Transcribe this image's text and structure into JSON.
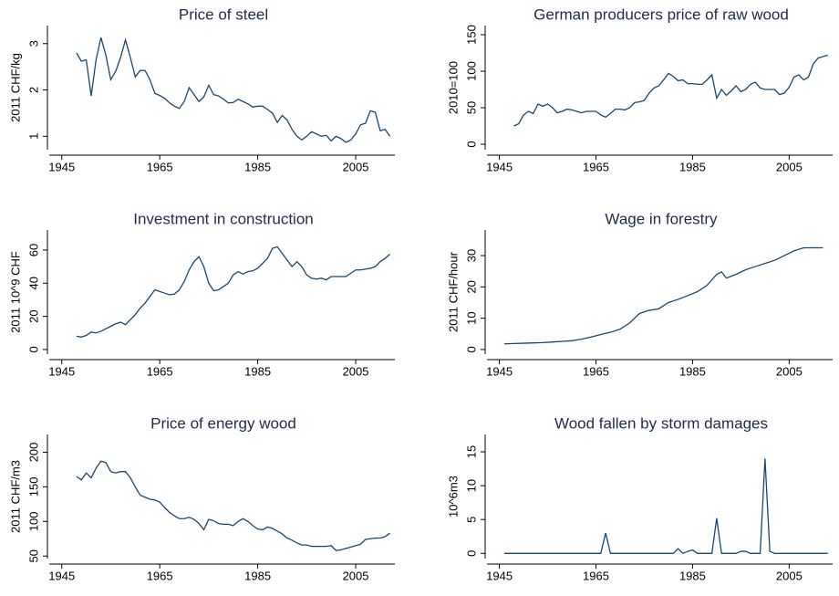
{
  "chart_data": [
    {
      "type": "line",
      "title": "Price of steel",
      "y_label": "2011 CHF/kg",
      "color": "#1a476f",
      "x": [
        1948,
        1949,
        1950,
        1951,
        1952,
        1953,
        1954,
        1955,
        1956,
        1957,
        1958,
        1959,
        1960,
        1961,
        1962,
        1963,
        1964,
        1965,
        1966,
        1967,
        1968,
        1969,
        1970,
        1971,
        1972,
        1973,
        1974,
        1975,
        1976,
        1977,
        1978,
        1979,
        1980,
        1981,
        1982,
        1983,
        1984,
        1985,
        1986,
        1987,
        1988,
        1989,
        1990,
        1991,
        1992,
        1993,
        1994,
        1995,
        1996,
        1997,
        1998,
        1999,
        2000,
        2001,
        2002,
        2003,
        2004,
        2005,
        2006,
        2007,
        2008,
        2009,
        2010,
        2011,
        2012
      ],
      "values": [
        2.8,
        2.62,
        2.65,
        1.87,
        2.65,
        3.13,
        2.75,
        2.22,
        2.4,
        2.7,
        3.08,
        2.7,
        2.28,
        2.42,
        2.42,
        2.22,
        1.93,
        1.88,
        1.82,
        1.72,
        1.65,
        1.6,
        1.75,
        2.05,
        1.9,
        1.75,
        1.85,
        2.1,
        1.9,
        1.87,
        1.8,
        1.72,
        1.73,
        1.8,
        1.75,
        1.7,
        1.63,
        1.65,
        1.65,
        1.58,
        1.5,
        1.3,
        1.45,
        1.35,
        1.15,
        1.0,
        0.92,
        1.0,
        1.1,
        1.05,
        1.0,
        1.02,
        0.9,
        1.0,
        0.95,
        0.87,
        0.92,
        1.05,
        1.25,
        1.28,
        1.55,
        1.52,
        1.12,
        1.15,
        1.0
      ],
      "xlim": [
        1943,
        2013
      ],
      "xticks": [
        1945,
        1965,
        1985,
        2005
      ],
      "ylim": [
        0.75,
        3.35
      ],
      "yticks": [
        1,
        2,
        3
      ]
    },
    {
      "type": "line",
      "title": "German producers price of raw wood",
      "y_label": "2010=100",
      "color": "#1a476f",
      "x": [
        1948,
        1949,
        1950,
        1951,
        1952,
        1953,
        1954,
        1955,
        1956,
        1957,
        1958,
        1959,
        1960,
        1961,
        1962,
        1963,
        1964,
        1965,
        1966,
        1967,
        1968,
        1969,
        1970,
        1971,
        1972,
        1973,
        1974,
        1975,
        1976,
        1977,
        1978,
        1979,
        1980,
        1981,
        1982,
        1983,
        1984,
        1985,
        1986,
        1987,
        1988,
        1989,
        1990,
        1991,
        1992,
        1993,
        1994,
        1995,
        1996,
        1997,
        1998,
        1999,
        2000,
        2001,
        2002,
        2003,
        2004,
        2005,
        2006,
        2007,
        2008,
        2009,
        2010,
        2011,
        2012,
        2013
      ],
      "values": [
        25,
        28,
        40,
        45,
        42,
        55,
        52,
        55,
        50,
        43,
        45,
        48,
        47,
        45,
        43,
        45,
        45,
        45,
        40,
        37,
        42,
        48,
        48,
        47,
        50,
        57,
        58,
        60,
        70,
        77,
        80,
        88,
        97,
        93,
        87,
        88,
        83,
        83,
        82,
        82,
        88,
        95,
        63,
        75,
        67,
        73,
        80,
        72,
        75,
        82,
        85,
        77,
        75,
        75,
        75,
        68,
        70,
        78,
        92,
        95,
        88,
        92,
        110,
        118,
        120,
        122
      ],
      "xlim": [
        1943,
        2014
      ],
      "xticks": [
        1945,
        1965,
        1985,
        2005
      ],
      "ylim": [
        -5,
        160
      ],
      "yticks": [
        0,
        50,
        100,
        150
      ]
    },
    {
      "type": "line",
      "title": "Investment in construction",
      "y_label": "2011 10^9 CHF",
      "color": "#1a476f",
      "x": [
        1948,
        1949,
        1950,
        1951,
        1952,
        1953,
        1954,
        1955,
        1956,
        1957,
        1958,
        1959,
        1960,
        1961,
        1962,
        1963,
        1964,
        1965,
        1966,
        1967,
        1968,
        1969,
        1970,
        1971,
        1972,
        1973,
        1974,
        1975,
        1976,
        1977,
        1978,
        1979,
        1980,
        1981,
        1982,
        1983,
        1984,
        1985,
        1986,
        1987,
        1988,
        1989,
        1990,
        1991,
        1992,
        1993,
        1994,
        1995,
        1996,
        1997,
        1998,
        1999,
        2000,
        2001,
        2002,
        2003,
        2004,
        2005,
        2006,
        2007,
        2008,
        2009,
        2010,
        2011,
        2012
      ],
      "values": [
        8,
        7.5,
        8.5,
        10.5,
        10,
        11,
        12.5,
        14,
        15.5,
        16.5,
        15,
        18,
        21,
        25,
        28,
        32,
        36,
        35,
        34,
        33,
        33.5,
        36,
        41,
        48,
        53,
        56,
        50,
        40,
        35.5,
        36,
        38,
        40,
        45,
        47,
        45.5,
        47,
        47.5,
        49,
        52,
        55,
        61,
        62,
        58,
        54,
        50,
        53,
        50,
        45,
        43,
        42.5,
        43,
        42,
        44,
        44,
        44,
        44,
        46,
        48,
        48,
        48.5,
        49,
        50,
        53,
        55,
        57.5
      ],
      "xlim": [
        1943,
        2013
      ],
      "xticks": [
        1945,
        1965,
        1985,
        2005
      ],
      "ylim": [
        -1.7,
        71
      ],
      "yticks": [
        0,
        20,
        40,
        60
      ]
    },
    {
      "type": "line",
      "title": "Wage in forestry",
      "y_label": "2011 CHF/hour",
      "color": "#1a476f",
      "x": [
        1946,
        1948,
        1950,
        1952,
        1954,
        1956,
        1958,
        1960,
        1962,
        1964,
        1966,
        1968,
        1970,
        1972,
        1974,
        1976,
        1978,
        1980,
        1982,
        1984,
        1986,
        1988,
        1990,
        1991,
        1992,
        1994,
        1996,
        1998,
        2000,
        2002,
        2004,
        2006,
        2008,
        2010,
        2012
      ],
      "values": [
        1.8,
        1.9,
        2.0,
        2.1,
        2.2,
        2.4,
        2.6,
        2.8,
        3.3,
        4.0,
        4.8,
        5.5,
        6.5,
        8.5,
        11.5,
        12.5,
        13,
        15,
        16,
        17.2,
        18.5,
        20.5,
        24,
        24.8,
        22.8,
        24,
        25.5,
        26.5,
        27.5,
        28.5,
        30,
        31.5,
        32.5,
        32.5,
        32.5
      ],
      "xlim": [
        1943,
        2014
      ],
      "xticks": [
        1945,
        1965,
        1985,
        2005
      ],
      "ylim": [
        -0.9,
        37.6
      ],
      "yticks": [
        0,
        10,
        20,
        30
      ]
    },
    {
      "type": "line",
      "title": "Price of energy wood",
      "y_label": "2011 CHF/m3",
      "color": "#1a476f",
      "x": [
        1948,
        1949,
        1950,
        1951,
        1952,
        1953,
        1954,
        1955,
        1956,
        1957,
        1958,
        1959,
        1960,
        1961,
        1962,
        1963,
        1964,
        1965,
        1966,
        1967,
        1968,
        1969,
        1970,
        1971,
        1972,
        1973,
        1974,
        1975,
        1976,
        1977,
        1978,
        1979,
        1980,
        1981,
        1982,
        1983,
        1984,
        1985,
        1986,
        1987,
        1988,
        1989,
        1990,
        1991,
        1992,
        1993,
        1994,
        1995,
        1996,
        1997,
        1998,
        1999,
        2000,
        2001,
        2002,
        2003,
        2004,
        2005,
        2006,
        2007,
        2008,
        2009,
        2010,
        2011,
        2012
      ],
      "values": [
        165,
        160,
        170,
        163,
        177,
        187,
        185,
        172,
        170,
        172,
        172,
        163,
        150,
        138,
        135,
        132,
        131,
        128,
        120,
        113,
        108,
        104,
        104,
        106,
        103,
        97,
        88,
        103,
        101,
        97,
        96,
        96,
        94,
        100,
        104,
        100,
        94,
        89,
        88,
        92,
        90,
        86,
        82,
        76,
        73,
        69,
        66,
        66,
        64,
        64,
        64,
        64,
        65,
        58,
        59,
        61,
        63,
        65,
        67,
        74,
        75,
        76,
        76,
        78,
        83
      ],
      "xlim": [
        1943,
        2013
      ],
      "xticks": [
        1945,
        1965,
        1985,
        2005
      ],
      "ylim": [
        49,
        223
      ],
      "yticks": [
        50,
        100,
        150,
        200
      ]
    },
    {
      "type": "line",
      "title": "Wood fallen by storm damages",
      "y_label": "10^6m3",
      "color": "#1a476f",
      "x": [
        1946,
        1966,
        1967,
        1968,
        1981,
        1982,
        1983,
        1984,
        1985,
        1986,
        1989,
        1990,
        1991,
        1994,
        1995,
        1996,
        1997,
        1999,
        2000,
        2001,
        2002,
        2013
      ],
      "values": [
        0,
        0,
        3.0,
        0,
        0,
        0.7,
        0,
        0.3,
        0.5,
        0,
        0,
        5.2,
        0,
        0,
        0.3,
        0.3,
        0,
        0,
        14,
        0.3,
        0,
        0
      ],
      "xlim": [
        1943,
        2014
      ],
      "xticks": [
        1945,
        1965,
        1985,
        2005
      ],
      "ylim": [
        -0.5,
        17.3
      ],
      "yticks": [
        0,
        5,
        10,
        15
      ]
    }
  ]
}
